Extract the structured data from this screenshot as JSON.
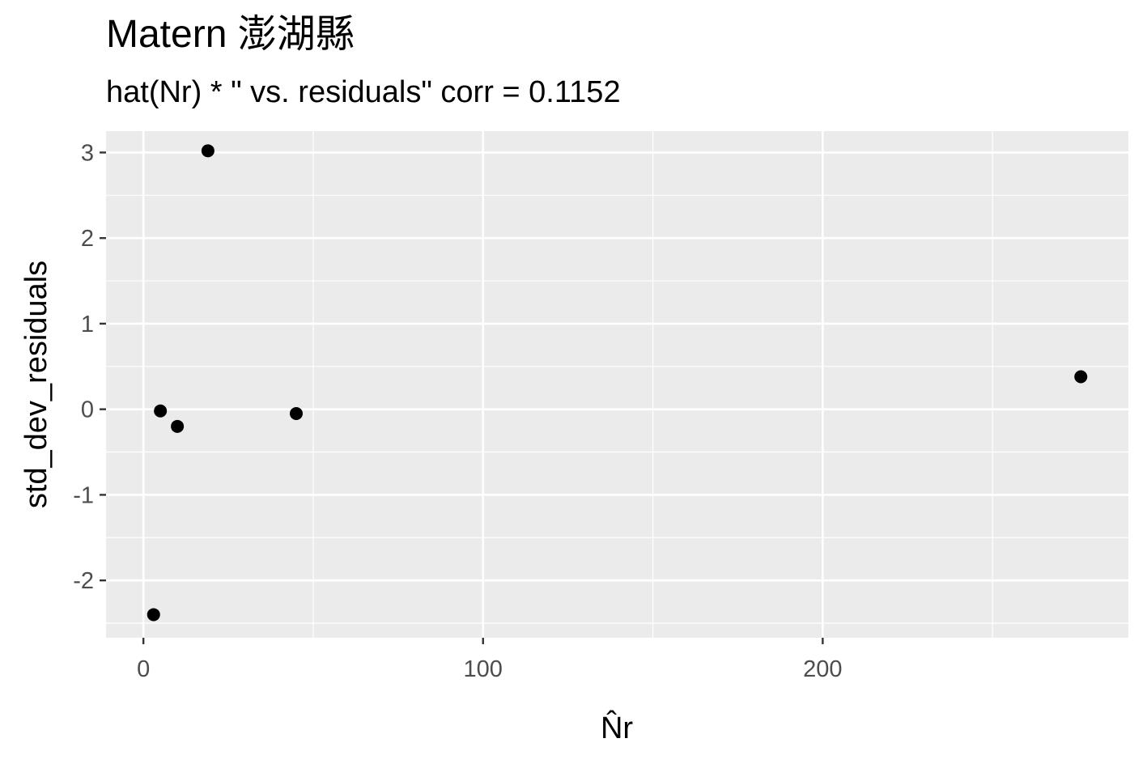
{
  "chart_data": {
    "type": "scatter",
    "title": "Matern 澎湖縣",
    "subtitle": "hat(Nr) * \"  vs. residuals\" corr = 0.1152",
    "xlabel": "N̂r",
    "ylabel": "std_dev_residuals",
    "xlim": [
      -11,
      290
    ],
    "ylim": [
      -2.67,
      3.25
    ],
    "x_ticks": [
      0,
      100,
      200
    ],
    "y_ticks": [
      -2,
      -1,
      0,
      1,
      2,
      3
    ],
    "x_tick_labels": [
      "0",
      "100",
      "200"
    ],
    "y_tick_labels": [
      "-2",
      "-1",
      "0",
      "1",
      "2",
      "3"
    ],
    "grid": true,
    "points": [
      {
        "x": 19,
        "y": 3.02
      },
      {
        "x": 5,
        "y": -0.02
      },
      {
        "x": 10,
        "y": -0.2
      },
      {
        "x": 45,
        "y": -0.05
      },
      {
        "x": 3,
        "y": -2.4
      },
      {
        "x": 276,
        "y": 0.38
      }
    ],
    "point_color": "#000000",
    "panel_background": "#ebebeb",
    "grid_color": "#ffffff"
  }
}
